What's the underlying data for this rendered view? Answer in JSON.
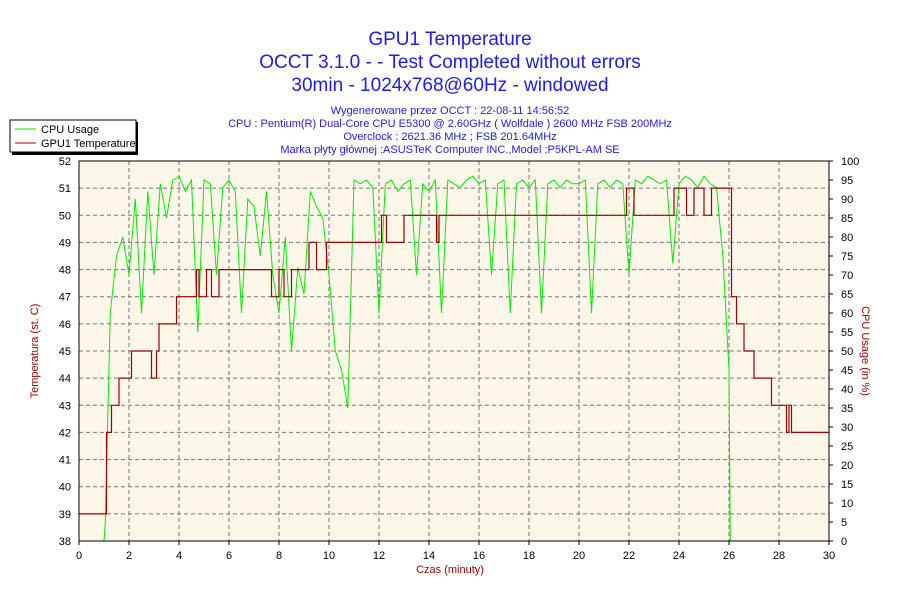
{
  "chart_data": {
    "type": "line",
    "title": [
      "GPU1 Temperature",
      "OCCT 3.1.0 -  - Test Completed without errors",
      "30min - 1024x768@60Hz - windowed"
    ],
    "subtitle": [
      "Wygenerowane przez OCCT : 22-08-11 14:56:52",
      "CPU : Pentium(R) Dual-Core CPU E5300 @ 2.60GHz ( Wolfdale ) 2600 MHz FSB 200MHz",
      "Overclock : 2621.36 MHz ; FSB 201.64MHz",
      "Marka płyty głównej :ASUSTeK Computer INC.,Model :P5KPL-AM SE"
    ],
    "xlabel": "Czas (minuty)",
    "ylabel": "Temperatura (st. C)",
    "y2label": "CPU Usage (in %)",
    "xlim": [
      0,
      30
    ],
    "ylim": [
      38,
      52
    ],
    "y2lim": [
      0,
      100
    ],
    "xticks": [
      0,
      2,
      4,
      6,
      8,
      10,
      12,
      14,
      16,
      18,
      20,
      22,
      24,
      26,
      28,
      30
    ],
    "yticks": [
      38,
      39,
      40,
      41,
      42,
      43,
      44,
      45,
      46,
      47,
      48,
      49,
      50,
      51,
      52
    ],
    "y2ticks": [
      0,
      5,
      10,
      15,
      20,
      25,
      30,
      35,
      40,
      45,
      50,
      55,
      60,
      65,
      70,
      75,
      80,
      85,
      90,
      95,
      100
    ],
    "grid": true,
    "legend_position": "top-left",
    "colors": {
      "cpu": "#00ee00",
      "gpu": "#a00000",
      "title": "#1c1cf0",
      "plot_bg": "#fdf7e9"
    },
    "series": [
      {
        "name": "CPU Usage",
        "axis": "right",
        "points": [
          [
            0,
            0
          ],
          [
            1,
            0
          ],
          [
            1.05,
            5
          ],
          [
            1.25,
            60
          ],
          [
            1.5,
            75
          ],
          [
            1.75,
            80
          ],
          [
            2,
            70
          ],
          [
            2.25,
            90
          ],
          [
            2.5,
            60
          ],
          [
            2.75,
            92
          ],
          [
            3,
            70
          ],
          [
            3.25,
            94
          ],
          [
            3.5,
            85
          ],
          [
            3.75,
            95
          ],
          [
            4,
            96
          ],
          [
            4.25,
            92
          ],
          [
            4.5,
            95
          ],
          [
            4.75,
            55
          ],
          [
            5,
            95
          ],
          [
            5.25,
            94
          ],
          [
            5.5,
            70
          ],
          [
            5.75,
            93
          ],
          [
            6,
            95
          ],
          [
            6.25,
            92
          ],
          [
            6.5,
            60
          ],
          [
            6.75,
            90
          ],
          [
            7,
            88
          ],
          [
            7.25,
            75
          ],
          [
            7.5,
            92
          ],
          [
            7.75,
            70
          ],
          [
            8,
            60
          ],
          [
            8.25,
            80
          ],
          [
            8.5,
            50
          ],
          [
            8.75,
            72
          ],
          [
            9,
            65
          ],
          [
            9.25,
            92
          ],
          [
            9.5,
            88
          ],
          [
            9.75,
            85
          ],
          [
            10,
            70
          ],
          [
            10.25,
            50
          ],
          [
            10.5,
            45
          ],
          [
            10.75,
            35
          ],
          [
            11,
            95
          ],
          [
            11.25,
            94
          ],
          [
            11.5,
            95
          ],
          [
            11.75,
            93
          ],
          [
            12,
            60
          ],
          [
            12.25,
            94
          ],
          [
            12.5,
            95
          ],
          [
            12.75,
            92
          ],
          [
            13,
            94
          ],
          [
            13.25,
            95
          ],
          [
            13.5,
            70
          ],
          [
            13.75,
            94
          ],
          [
            14,
            92
          ],
          [
            14.25,
            95
          ],
          [
            14.5,
            60
          ],
          [
            14.75,
            95
          ],
          [
            15,
            94
          ],
          [
            15.25,
            93
          ],
          [
            15.5,
            95
          ],
          [
            15.75,
            96
          ],
          [
            16,
            94
          ],
          [
            16.25,
            95
          ],
          [
            16.5,
            70
          ],
          [
            16.75,
            94
          ],
          [
            17,
            95
          ],
          [
            17.25,
            60
          ],
          [
            17.5,
            94
          ],
          [
            17.75,
            95
          ],
          [
            18,
            93
          ],
          [
            18.25,
            95
          ],
          [
            18.5,
            60
          ],
          [
            18.75,
            94
          ],
          [
            19,
            95
          ],
          [
            19.25,
            93
          ],
          [
            19.5,
            95
          ],
          [
            19.75,
            94
          ],
          [
            20,
            94
          ],
          [
            20.25,
            95
          ],
          [
            20.5,
            60
          ],
          [
            20.75,
            94
          ],
          [
            21,
            95
          ],
          [
            21.25,
            93
          ],
          [
            21.5,
            95
          ],
          [
            21.75,
            94
          ],
          [
            22,
            70
          ],
          [
            22.25,
            95
          ],
          [
            22.5,
            94
          ],
          [
            22.75,
            96
          ],
          [
            23,
            95
          ],
          [
            23.25,
            94
          ],
          [
            23.5,
            95
          ],
          [
            23.75,
            73
          ],
          [
            24,
            94
          ],
          [
            24.25,
            96
          ],
          [
            24.5,
            95
          ],
          [
            24.75,
            93
          ],
          [
            25,
            96
          ],
          [
            25.25,
            94
          ],
          [
            25.5,
            93
          ],
          [
            25.75,
            75
          ],
          [
            26,
            45
          ],
          [
            26.05,
            0
          ],
          [
            30,
            0
          ]
        ]
      },
      {
        "name": "GPU1 Temperature",
        "axis": "left",
        "points": [
          [
            0,
            39
          ],
          [
            1,
            39
          ],
          [
            1.1,
            42
          ],
          [
            1.3,
            43
          ],
          [
            1.6,
            44
          ],
          [
            2.1,
            45
          ],
          [
            2.9,
            44
          ],
          [
            3.1,
            45
          ],
          [
            3.2,
            46
          ],
          [
            3.9,
            47
          ],
          [
            4.7,
            48
          ],
          [
            4.8,
            47
          ],
          [
            5.1,
            48
          ],
          [
            5.3,
            47
          ],
          [
            5.6,
            48
          ],
          [
            7.7,
            47
          ],
          [
            8.0,
            48
          ],
          [
            8.2,
            47
          ],
          [
            8.5,
            48
          ],
          [
            9.2,
            49
          ],
          [
            9.5,
            48
          ],
          [
            9.9,
            49
          ],
          [
            12.1,
            50
          ],
          [
            12.3,
            49
          ],
          [
            13.0,
            50
          ],
          [
            14.3,
            49
          ],
          [
            14.4,
            50
          ],
          [
            21.9,
            51
          ],
          [
            22.2,
            50
          ],
          [
            23.8,
            51
          ],
          [
            24.3,
            50
          ],
          [
            24.6,
            51
          ],
          [
            25.0,
            50
          ],
          [
            25.3,
            51
          ],
          [
            25.8,
            51
          ],
          [
            26.1,
            47
          ],
          [
            26.3,
            46
          ],
          [
            26.6,
            45
          ],
          [
            27.0,
            44
          ],
          [
            27.7,
            43
          ],
          [
            28.3,
            42
          ],
          [
            28.4,
            43
          ],
          [
            28.5,
            42
          ],
          [
            30,
            42
          ]
        ]
      }
    ]
  }
}
